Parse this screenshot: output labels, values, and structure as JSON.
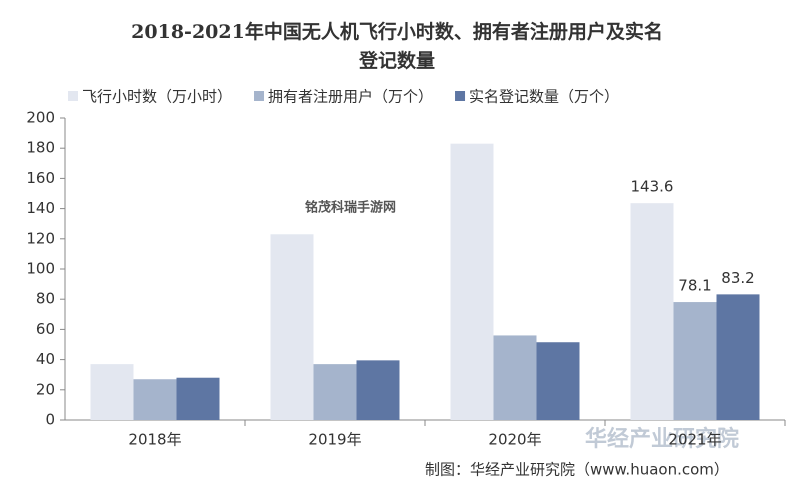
{
  "chart_data": {
    "type": "bar",
    "title": "2018-2021年中国无人机飞行小时数、拥有者注册用户及实名",
    "subtitle": "登记数量",
    "categories": [
      "2018年",
      "2019年",
      "2020年",
      "2021年"
    ],
    "series": [
      {
        "name": "飞行小时数（万小时）",
        "color": "#e3e7f0",
        "values": [
          37,
          123,
          183,
          143.6
        ],
        "value_labels": [
          null,
          null,
          null,
          "143.6"
        ]
      },
      {
        "name": "拥有者注册用户（万个）",
        "color": "#a5b4cc",
        "values": [
          27,
          37,
          56,
          78.1
        ],
        "value_labels": [
          null,
          null,
          null,
          "78.1"
        ]
      },
      {
        "name": "实名登记数量（万个）",
        "color": "#5e76a3",
        "values": [
          28,
          39.5,
          51.5,
          83.2
        ],
        "value_labels": [
          null,
          null,
          null,
          "83.2"
        ]
      }
    ],
    "ylim": [
      0,
      200
    ],
    "yticks": [
      0,
      20,
      40,
      60,
      80,
      100,
      120,
      140,
      160,
      180,
      200
    ],
    "grid": false,
    "legend": "top",
    "source": "制图：华经产业研究院（www.huaon.com）",
    "watermarks": [
      "铭茂科瑞手游网",
      "华经产业研究院"
    ]
  }
}
